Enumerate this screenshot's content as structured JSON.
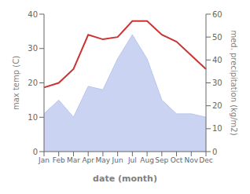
{
  "chart_data": {
    "type": "line",
    "categories": [
      "Jan",
      "Feb",
      "Mar",
      "Apr",
      "May",
      "Jun",
      "Jul",
      "Aug",
      "Sep",
      "Oct",
      "Nov",
      "Dec"
    ],
    "series": [
      {
        "type": "area",
        "color": "#b8c4ee",
        "values": [
          11,
          15,
          10,
          19,
          18,
          27,
          34,
          27,
          15,
          11,
          11,
          10
        ]
      },
      {
        "type": "line",
        "color": "#cc3333",
        "axis": "y2",
        "values": [
          28,
          30,
          36,
          51,
          49,
          50,
          57,
          57,
          51,
          48,
          42,
          36
        ]
      }
    ],
    "xlabel": "date (month)",
    "ylabel": "max temp (C)",
    "y2label": "med. precipitation (kg/m2)",
    "ylim": [
      0,
      40
    ],
    "yticks": [
      0,
      10,
      20,
      30,
      40
    ],
    "y2lim": [
      0,
      60
    ],
    "y2ticks": [
      0,
      10,
      20,
      30,
      40,
      50,
      60
    ],
    "grid": false
  }
}
